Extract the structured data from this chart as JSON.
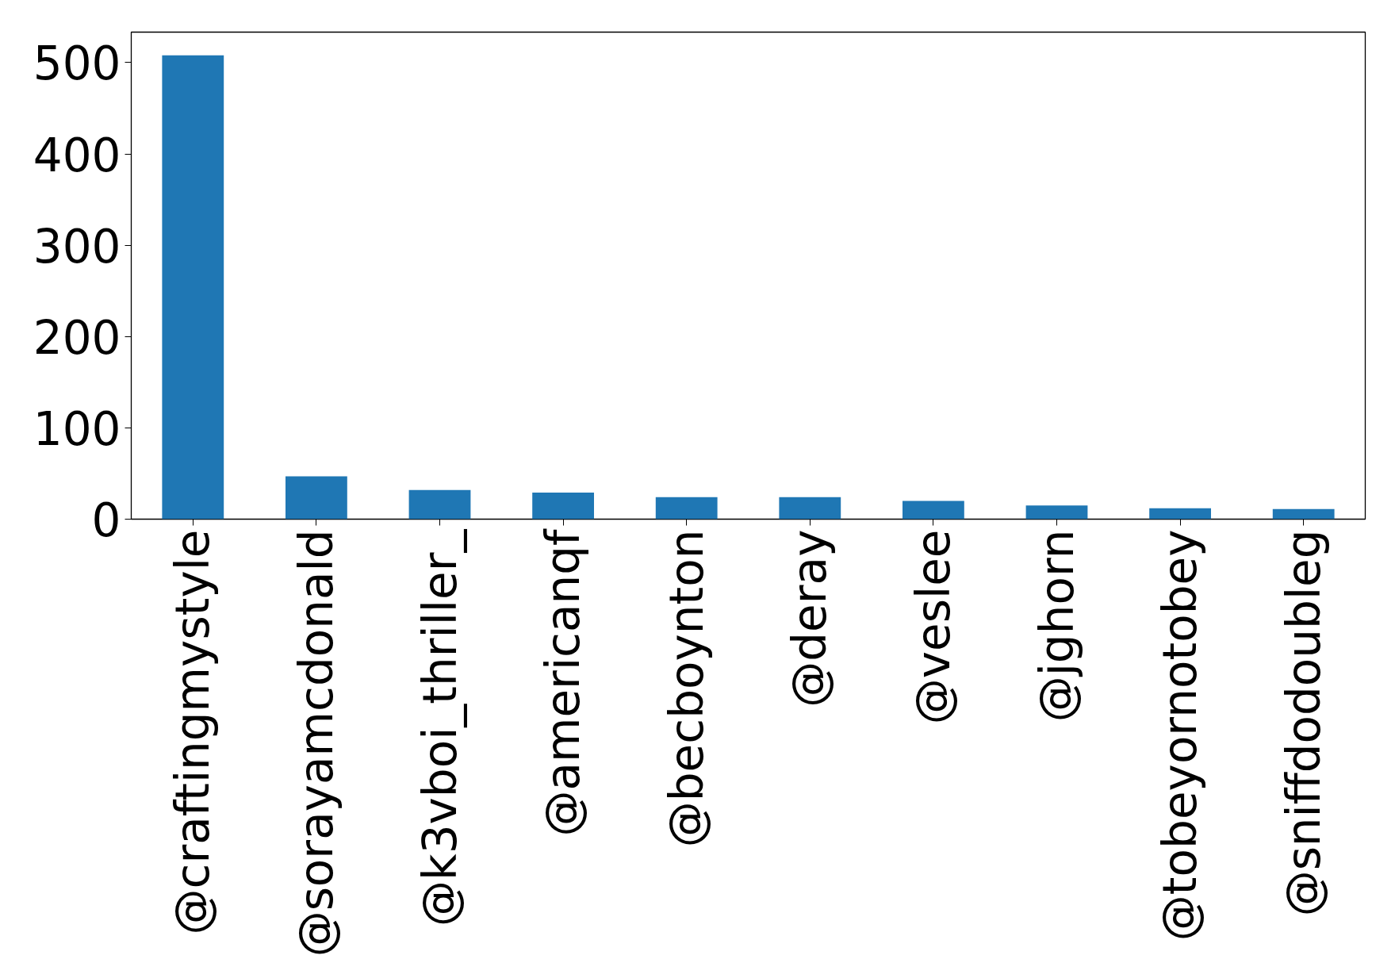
{
  "chart_data": {
    "type": "bar",
    "categories": [
      "@craftingmystyle",
      "@sorayamcdonald",
      "@k3vboi_thriller_",
      "@americanqf",
      "@becboynton",
      "@deray",
      "@veslee",
      "@jghorn",
      "@tobeyornotobey",
      "@sniffdodoubleg"
    ],
    "values": [
      508,
      47,
      32,
      29,
      24,
      24,
      20,
      15,
      12,
      11
    ],
    "color": "#1f77b4",
    "ylim": [
      0,
      533.4
    ],
    "yticks": [
      0,
      100,
      200,
      300,
      400,
      500
    ],
    "grid": false
  }
}
